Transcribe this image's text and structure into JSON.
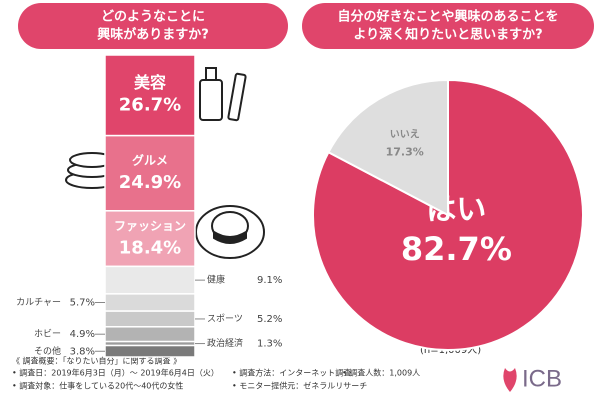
{
  "chart_data": [
    {
      "type": "stacked-column",
      "title": [
        "どのようなことに",
        "興味がありますか?"
      ],
      "categories": [
        "美容",
        "グルメ",
        "ファッション",
        "健康",
        "カルチャー",
        "スポーツ",
        "ホビー",
        "政治経済",
        "その他"
      ],
      "values": [
        26.7,
        24.9,
        18.4,
        9.1,
        5.7,
        5.2,
        4.9,
        1.3,
        3.8
      ],
      "value_labels": [
        "26.7%",
        "24.9%",
        "18.4%",
        "9.1%",
        "5.7%",
        "5.2%",
        "4.9%",
        "1.3%",
        "3.8%"
      ],
      "colors": [
        "#e0456b",
        "#e8718c",
        "#f0a3b4",
        "#e9e9e9",
        "#dadada",
        "#c9c9c9",
        "#b3b3b3",
        "#9c9c9c",
        "#7a7a7a"
      ]
    },
    {
      "type": "pie",
      "title": [
        "自分の好きなことや興味のあることを",
        "より深く知りたいと思いますか?"
      ],
      "categories": [
        "はい",
        "いいえ"
      ],
      "values": [
        82.7,
        17.3
      ],
      "value_labels": [
        "82.7%",
        "17.3%"
      ],
      "colors": [
        "#dc3d63",
        "#dedede"
      ],
      "note": "(n=1,009人)"
    }
  ],
  "footer": {
    "heading": "《 調査概要：「なりたい自分」に関する調査 》",
    "items": [
      "• 調査日：2019年6月3日（月）～ 2019年6月4日（火）",
      "• 調査方法：インターネット調査",
      "• 調査人数：1,009人",
      "• 調査対象：仕事をしている20代～40代の女性",
      "• モニター提供元：ゼネラルリサーチ"
    ],
    "logo": "ICB"
  }
}
